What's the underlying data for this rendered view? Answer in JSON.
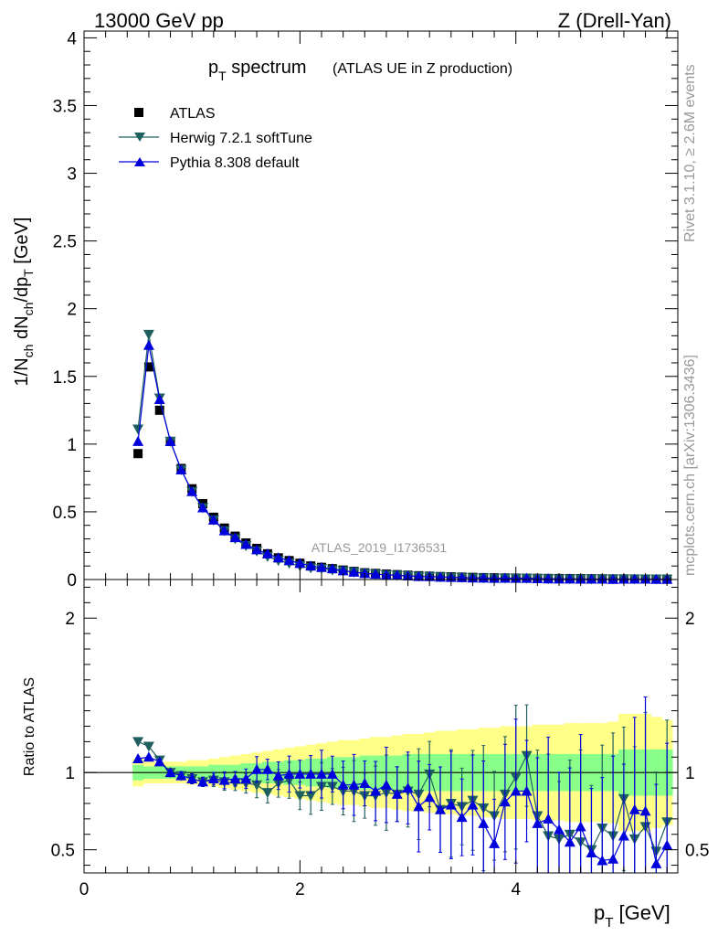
{
  "header": {
    "energy": "13000 GeV pp",
    "process": "Z (Drell-Yan)"
  },
  "side_labels": {
    "rivet": "Rivet 3.1.10, ≥ 2.6M events",
    "mcplots": "mcplots.cern.ch [arXiv:1306.3436]"
  },
  "colors": {
    "data": "#000000",
    "herwig": "#1f5f5f",
    "pythia": "#0000dd",
    "band_outer": "#ffff88",
    "band_inner": "#88ff88"
  },
  "chart_data": [
    {
      "type": "scatter",
      "panel": "main",
      "title_main": "p",
      "title_sub": "T",
      "title_rest": " spectrum",
      "title_paren": "(ATLAS UE in Z production)",
      "watermark": "ATLAS_2019_I1736531",
      "ylabel": "1/N_ch dN_ch/dp_T [GeV]",
      "xlim": [
        0,
        5.5
      ],
      "ylim": [
        0,
        4.05
      ],
      "yticks": [
        "0",
        "0.5",
        "1",
        "1.5",
        "2",
        "2.5",
        "3",
        "3.5",
        "4"
      ],
      "legend_position": "top-left",
      "x": [
        0.5,
        0.6,
        0.7,
        0.8,
        0.9,
        1.0,
        1.1,
        1.2,
        1.3,
        1.4,
        1.5,
        1.6,
        1.7,
        1.8,
        1.9,
        2.0,
        2.1,
        2.2,
        2.3,
        2.4,
        2.5,
        2.6,
        2.7,
        2.8,
        2.9,
        3.0,
        3.1,
        3.2,
        3.3,
        3.4,
        3.5,
        3.6,
        3.7,
        3.8,
        3.9,
        4.0,
        4.1,
        4.2,
        4.3,
        4.4,
        4.5,
        4.6,
        4.7,
        4.8,
        4.9,
        5.0,
        5.1,
        5.2,
        5.3,
        5.4
      ],
      "series": [
        {
          "name": "ATLAS",
          "marker": "square",
          "values": [
            0.93,
            1.57,
            1.25,
            1.02,
            0.82,
            0.67,
            0.56,
            0.46,
            0.38,
            0.32,
            0.27,
            0.23,
            0.19,
            0.16,
            0.14,
            0.12,
            0.1,
            0.09,
            0.08,
            0.07,
            0.06,
            0.05,
            0.045,
            0.04,
            0.036,
            0.032,
            0.028,
            0.025,
            0.022,
            0.02,
            0.018,
            0.016,
            0.014,
            0.013,
            0.012,
            0.011,
            0.01,
            0.009,
            0.008,
            0.0075,
            0.007,
            0.0065,
            0.006,
            0.0055,
            0.005,
            0.0045,
            0.004,
            0.0037,
            0.0034,
            0.003
          ]
        },
        {
          "name": "Herwig 7.2.1 softTune",
          "marker": "triangle-down",
          "values": [
            1.11,
            1.81,
            1.34,
            1.02,
            0.81,
            0.65,
            0.53,
            0.44,
            0.36,
            0.3,
            0.25,
            0.21,
            0.17,
            0.14,
            0.12,
            0.1,
            0.085,
            0.08,
            0.07,
            0.063,
            0.055,
            0.045,
            0.04,
            0.034,
            0.031,
            0.028,
            0.024,
            0.023,
            0.019,
            0.016,
            0.015,
            0.012,
            0.011,
            0.009,
            0.01,
            0.01,
            0.009,
            0.007,
            0.005,
            0.004,
            0.004,
            0.004,
            0.003,
            0.003,
            0.003,
            0.004,
            0.003,
            0.003,
            0.003,
            0.002
          ]
        },
        {
          "name": "Pythia 8.308 default",
          "marker": "triangle-up",
          "values": [
            1.02,
            1.73,
            1.33,
            1.02,
            0.81,
            0.65,
            0.53,
            0.44,
            0.36,
            0.31,
            0.26,
            0.22,
            0.19,
            0.16,
            0.14,
            0.12,
            0.1,
            0.09,
            0.08,
            0.065,
            0.055,
            0.045,
            0.04,
            0.035,
            0.031,
            0.027,
            0.023,
            0.022,
            0.018,
            0.016,
            0.014,
            0.012,
            0.011,
            0.009,
            0.01,
            0.009,
            0.009,
            0.007,
            0.005,
            0.004,
            0.004,
            0.003,
            0.003,
            0.003,
            0.002,
            0.003,
            0.003,
            0.003,
            0.002,
            0.002
          ]
        }
      ]
    },
    {
      "type": "scatter",
      "panel": "ratio",
      "ylabel": "Ratio to ATLAS",
      "xlabel_main": "p",
      "xlabel_sub": "T",
      "xlabel_rest": " [GeV]",
      "xlim": [
        0,
        5.5
      ],
      "ylim": [
        0.35,
        2.25
      ],
      "xticks": [
        "0",
        "2",
        "4"
      ],
      "yticks": [
        "0.5",
        "1",
        "2"
      ],
      "x": [
        0.5,
        0.6,
        0.7,
        0.8,
        0.9,
        1.0,
        1.1,
        1.2,
        1.3,
        1.4,
        1.5,
        1.6,
        1.7,
        1.8,
        1.9,
        2.0,
        2.1,
        2.2,
        2.3,
        2.4,
        2.5,
        2.6,
        2.7,
        2.8,
        2.9,
        3.0,
        3.1,
        3.2,
        3.3,
        3.4,
        3.5,
        3.6,
        3.7,
        3.8,
        3.9,
        4.0,
        4.1,
        4.2,
        4.3,
        4.4,
        4.5,
        4.6,
        4.7,
        4.8,
        4.9,
        5.0,
        5.1,
        5.2,
        5.3,
        5.4
      ],
      "band_inner": [
        0.05,
        0.04,
        0.04,
        0.04,
        0.04,
        0.04,
        0.04,
        0.05,
        0.05,
        0.05,
        0.06,
        0.06,
        0.07,
        0.07,
        0.08,
        0.08,
        0.09,
        0.09,
        0.1,
        0.1,
        0.1,
        0.11,
        0.11,
        0.11,
        0.11,
        0.12,
        0.12,
        0.12,
        0.12,
        0.12,
        0.12,
        0.12,
        0.12,
        0.12,
        0.12,
        0.12,
        0.12,
        0.12,
        0.12,
        0.12,
        0.12,
        0.12,
        0.12,
        0.12,
        0.12,
        0.15,
        0.15,
        0.15,
        0.15,
        0.15
      ],
      "band_outer": [
        0.09,
        0.07,
        0.07,
        0.07,
        0.07,
        0.08,
        0.08,
        0.09,
        0.1,
        0.11,
        0.12,
        0.13,
        0.14,
        0.15,
        0.16,
        0.17,
        0.18,
        0.19,
        0.2,
        0.21,
        0.21,
        0.22,
        0.23,
        0.23,
        0.24,
        0.25,
        0.25,
        0.26,
        0.27,
        0.27,
        0.28,
        0.28,
        0.29,
        0.29,
        0.3,
        0.3,
        0.3,
        0.31,
        0.31,
        0.31,
        0.32,
        0.32,
        0.32,
        0.32,
        0.33,
        0.38,
        0.38,
        0.38,
        0.36,
        0.34
      ],
      "series": [
        {
          "name": "Herwig 7.2.1 softTune",
          "marker": "triangle-down",
          "values": [
            1.2,
            1.17,
            1.08,
            1.0,
            0.98,
            0.96,
            0.94,
            0.95,
            0.94,
            0.93,
            0.93,
            0.92,
            0.87,
            0.93,
            0.95,
            0.85,
            0.85,
            0.91,
            0.91,
            0.88,
            0.88,
            0.85,
            0.85,
            0.87,
            0.86,
            0.88,
            0.86,
            0.99,
            0.76,
            0.8,
            0.78,
            0.82,
            0.77,
            0.72,
            0.86,
            0.97,
            1.11,
            0.72,
            0.59,
            0.57,
            0.6,
            0.55,
            0.5,
            0.64,
            0.59,
            0.83,
            0.57,
            0.65,
            0.49,
            0.68
          ]
        },
        {
          "name": "Pythia 8.308 default",
          "marker": "triangle-up",
          "values": [
            1.09,
            1.1,
            1.07,
            1.0,
            0.98,
            0.96,
            0.94,
            0.96,
            0.95,
            0.96,
            0.96,
            1.02,
            1.02,
            0.98,
            0.99,
            0.99,
            0.99,
            0.99,
            0.99,
            0.92,
            0.92,
            0.93,
            0.88,
            0.92,
            0.86,
            0.9,
            0.78,
            0.84,
            0.76,
            0.79,
            0.71,
            0.79,
            0.67,
            0.54,
            0.81,
            0.88,
            0.88,
            0.67,
            0.7,
            0.63,
            0.55,
            0.65,
            0.48,
            0.43,
            0.44,
            0.59,
            0.76,
            0.75,
            0.41,
            0.53
          ]
        }
      ]
    }
  ]
}
